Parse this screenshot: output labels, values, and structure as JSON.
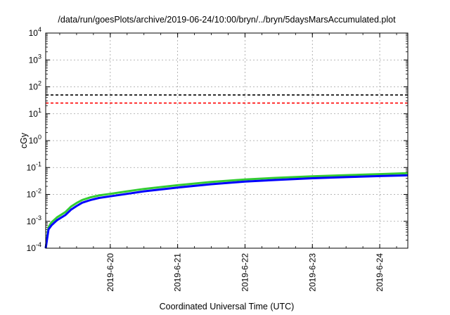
{
  "chart_data": {
    "type": "line",
    "title": "/data/run/goesPlots/archive/2019-06-24/10:00/bryn/../bryn/5daysMarsAccumulated.plot",
    "xlabel": "Coordinated Universal Time (UTC)",
    "ylabel": "cGy",
    "yscale": "log",
    "ylim": [
      0.0001,
      10000
    ],
    "yticks": [
      {
        "base": "10",
        "exp": "-4",
        "value": 0.0001
      },
      {
        "base": "10",
        "exp": "-3",
        "value": 0.001
      },
      {
        "base": "10",
        "exp": "-2",
        "value": 0.01
      },
      {
        "base": "10",
        "exp": "-1",
        "value": 0.1
      },
      {
        "base": "10",
        "exp": "0",
        "value": 1
      },
      {
        "base": "10",
        "exp": "1",
        "value": 10
      },
      {
        "base": "10",
        "exp": "2",
        "value": 100
      },
      {
        "base": "10",
        "exp": "3",
        "value": 1000
      },
      {
        "base": "10",
        "exp": "4",
        "value": 10000
      }
    ],
    "xlim": [
      "2019-06-19 01:00",
      "2019-06-24 10:00"
    ],
    "xticks": [
      "2019-6-20",
      "2019-6-21",
      "2019-6-22",
      "2019-6-23",
      "2019-6-24"
    ],
    "grid": true,
    "reference_lines": [
      {
        "value": 50,
        "color": "#000000",
        "style": "dashed"
      },
      {
        "value": 25,
        "color": "#ff0000",
        "style": "dashed"
      }
    ],
    "series": [
      {
        "color": "#33cc33",
        "x": [
          "2019-06-19 01:00",
          "2019-06-19 02:00",
          "2019-06-19 03:00",
          "2019-06-19 05:00",
          "2019-06-19 08:00",
          "2019-06-19 10:00",
          "2019-06-19 12:00",
          "2019-06-19 14:00",
          "2019-06-19 17:00",
          "2019-06-19 20:00",
          "2019-06-20 00:00",
          "2019-06-20 06:00",
          "2019-06-20 12:00",
          "2019-06-21 00:00",
          "2019-06-21 12:00",
          "2019-06-22 00:00",
          "2019-06-22 12:00",
          "2019-06-23 00:00",
          "2019-06-23 12:00",
          "2019-06-24 00:00",
          "2019-06-24 10:00"
        ],
        "values": [
          0.0001,
          0.0006,
          0.0009,
          0.0014,
          0.0022,
          0.0035,
          0.0048,
          0.0062,
          0.0078,
          0.0092,
          0.0105,
          0.013,
          0.016,
          0.022,
          0.029,
          0.036,
          0.042,
          0.047,
          0.052,
          0.057,
          0.062
        ]
      },
      {
        "color": "#0000ff",
        "x": [
          "2019-06-19 01:00",
          "2019-06-19 02:00",
          "2019-06-19 03:00",
          "2019-06-19 05:00",
          "2019-06-19 08:00",
          "2019-06-19 10:00",
          "2019-06-19 12:00",
          "2019-06-19 14:00",
          "2019-06-19 17:00",
          "2019-06-19 20:00",
          "2019-06-20 00:00",
          "2019-06-20 06:00",
          "2019-06-20 12:00",
          "2019-06-21 00:00",
          "2019-06-21 12:00",
          "2019-06-22 00:00",
          "2019-06-22 12:00",
          "2019-06-23 00:00",
          "2019-06-23 12:00",
          "2019-06-24 00:00",
          "2019-06-24 10:00"
        ],
        "values": [
          0.0001,
          0.0005,
          0.0007,
          0.0011,
          0.0017,
          0.0027,
          0.0037,
          0.0049,
          0.0062,
          0.0074,
          0.0085,
          0.0105,
          0.013,
          0.018,
          0.024,
          0.03,
          0.035,
          0.04,
          0.044,
          0.048,
          0.051
        ]
      }
    ]
  }
}
